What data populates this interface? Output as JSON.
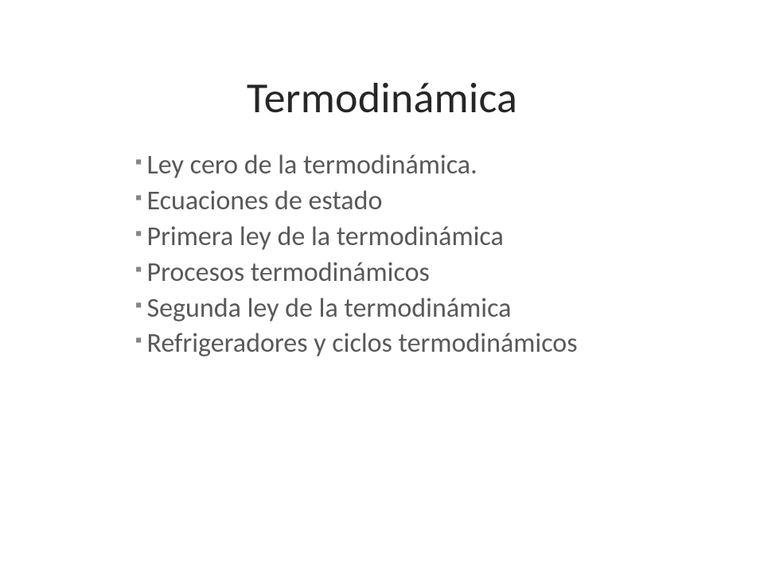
{
  "slide": {
    "background_color": "#ffffff",
    "title": {
      "text": "Termodinámica",
      "color": "#262626",
      "fontsize": 54,
      "fontweight": 400
    },
    "bullet": {
      "glyph": "▪",
      "color": "#858585",
      "fontsize": 24
    },
    "items_style": {
      "color": "#595959",
      "fontsize": 34,
      "fontweight": 400
    },
    "items": [
      "Ley cero de la termodinámica.",
      "Ecuaciones de estado",
      "Primera ley de la termodinámica",
      "Procesos termodinámicos",
      "Segunda ley de la termodinámica",
      "Refrigeradores y ciclos termodinámicos"
    ]
  }
}
